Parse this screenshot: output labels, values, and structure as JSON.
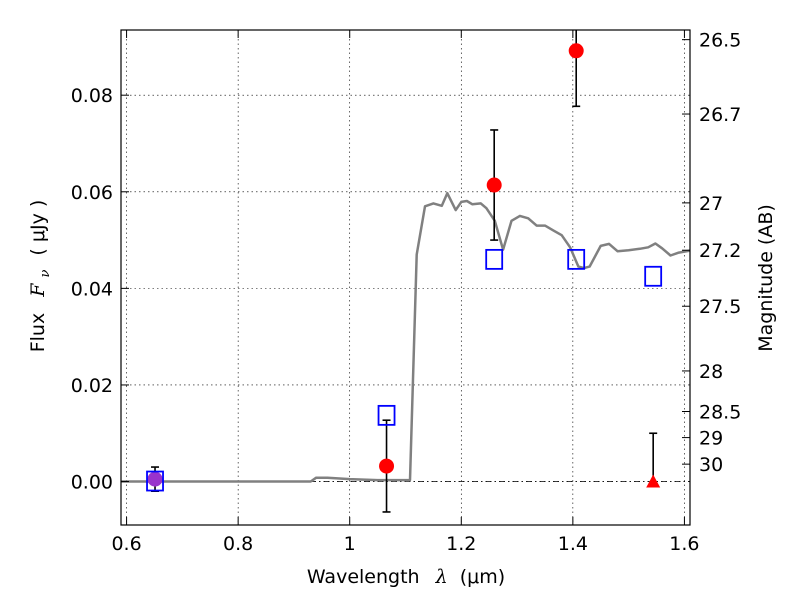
{
  "chart_data": {
    "type": "scatter",
    "xlabel_prefix": "Wavelength",
    "xlabel_symbol": "λ",
    "xlabel_unit": "(μm)",
    "ylabel_prefix": "Flux",
    "ylabel_symbol": "F",
    "ylabel_subscript": "ν",
    "ylabel_unit": "( μJy )",
    "y2label": "Magnitude (AB)",
    "xlim": [
      0.59,
      1.61
    ],
    "ylim": [
      -0.009,
      0.0935
    ],
    "x_ticks": [
      0.6,
      0.8,
      1.0,
      1.2,
      1.4,
      1.6
    ],
    "x_tick_labels": [
      "0.6",
      "0.8",
      "1",
      "1.2",
      "1.4",
      "1.6"
    ],
    "y_ticks": [
      0.0,
      0.02,
      0.04,
      0.06,
      0.08
    ],
    "y_tick_labels": [
      "0.00",
      "0.02",
      "0.04",
      "0.06",
      "0.08"
    ],
    "y2_ticks": [
      {
        "label": "26.5",
        "flux": 0.0915
      },
      {
        "label": "26.7",
        "flux": 0.0761
      },
      {
        "label": "27",
        "flux": 0.0577
      },
      {
        "label": "27.2",
        "flux": 0.0479
      },
      {
        "label": "27.5",
        "flux": 0.0363
      },
      {
        "label": "28",
        "flux": 0.0229
      },
      {
        "label": "28.5",
        "flux": 0.0145
      },
      {
        "label": "29",
        "flux": 0.0091
      },
      {
        "label": "30",
        "flux": 0.0036
      }
    ],
    "grid": true,
    "model_line": {
      "color": "#808080",
      "x": [
        0.59,
        0.93,
        0.94,
        0.96,
        1.0,
        1.05,
        1.1,
        1.108,
        1.12,
        1.135,
        1.15,
        1.165,
        1.175,
        1.19,
        1.2,
        1.21,
        1.22,
        1.235,
        1.245,
        1.26,
        1.275,
        1.29,
        1.305,
        1.32,
        1.335,
        1.35,
        1.365,
        1.38,
        1.395,
        1.41,
        1.42,
        1.43,
        1.45,
        1.465,
        1.48,
        1.5,
        1.52,
        1.535,
        1.548,
        1.56,
        1.575,
        1.59,
        1.61
      ],
      "y": [
        0.0,
        0.0,
        0.0008,
        0.0008,
        0.0005,
        0.0003,
        0.0003,
        0.0003,
        0.047,
        0.057,
        0.0576,
        0.0571,
        0.0597,
        0.0562,
        0.0579,
        0.0581,
        0.0574,
        0.0576,
        0.0566,
        0.054,
        0.048,
        0.054,
        0.055,
        0.0545,
        0.053,
        0.053,
        0.052,
        0.051,
        0.0485,
        0.0445,
        0.0442,
        0.0445,
        0.0488,
        0.0492,
        0.0477,
        0.0479,
        0.0482,
        0.0485,
        0.0493,
        0.0483,
        0.0468,
        0.0474,
        0.0478
      ]
    },
    "series": [
      {
        "marker": "circle",
        "color": "#ff0000",
        "x": [
          0.651,
          1.066,
          1.259,
          1.406
        ],
        "y": [
          0.0005,
          0.0032,
          0.0614,
          0.0892
        ],
        "yerr_low": [
          0.0025,
          0.0095,
          0.0114,
          0.0115
        ],
        "yerr_high": [
          0.0025,
          0.0095,
          0.0114,
          0.0115
        ]
      },
      {
        "marker": "triangle",
        "color": "#ff0000",
        "x": [
          1.544
        ],
        "y": [
          0.0
        ],
        "yerr_low": [
          0.0
        ],
        "yerr_high": [
          0.01
        ]
      },
      {
        "marker": "square-open",
        "color": "#0000ff",
        "x": [
          0.651,
          1.066,
          1.259,
          1.406,
          1.544
        ],
        "y": [
          0.0,
          0.0136,
          0.0459,
          0.0459,
          0.0424
        ]
      }
    ],
    "marker_overlap_color": "#9933cc"
  }
}
